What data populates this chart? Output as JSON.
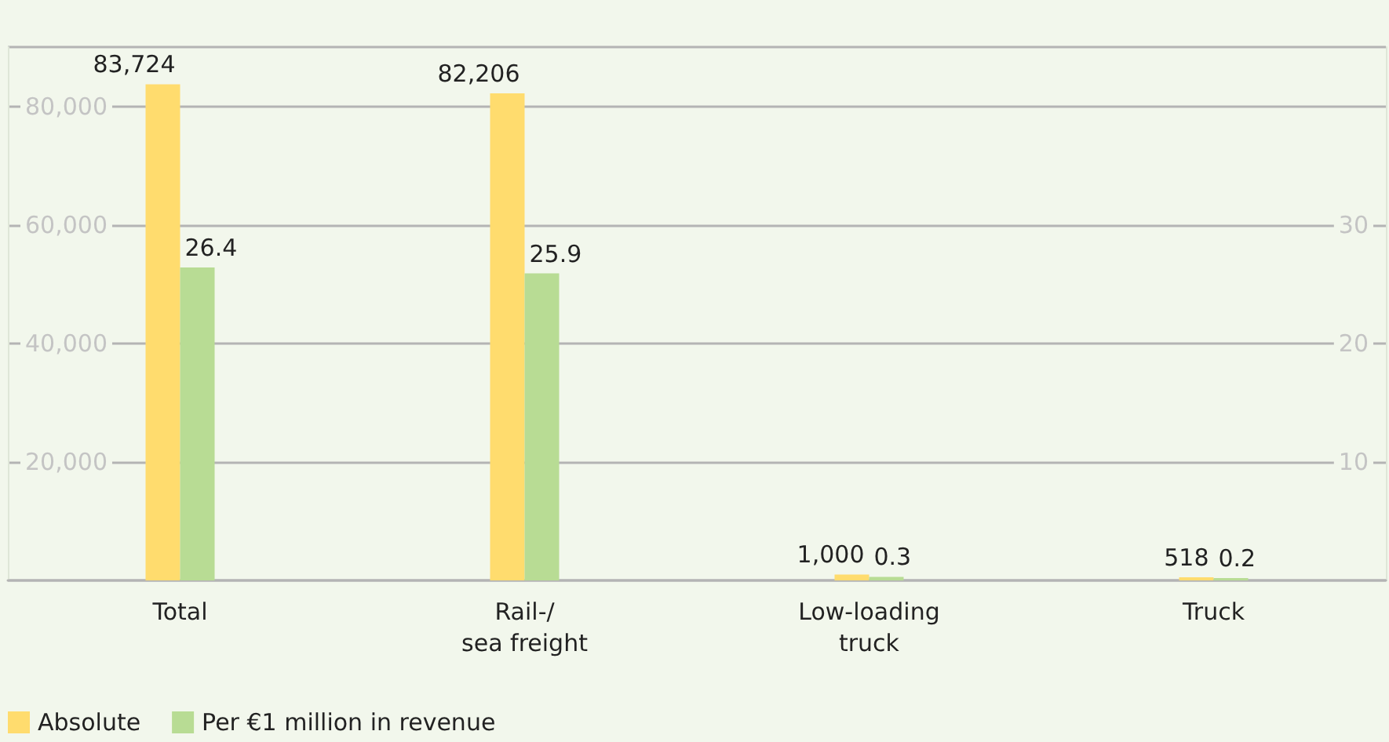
{
  "chart_data": {
    "type": "bar",
    "categories": [
      "Total",
      "Rail-/\nsea freight",
      "Low-loading\ntruck",
      "Truck"
    ],
    "series": [
      {
        "name": "Absolute",
        "color": "#ffdc6e",
        "values": [
          83724,
          82206,
          1000,
          518
        ],
        "value_labels": [
          "83,724",
          "82,206",
          "1,000",
          "518"
        ]
      },
      {
        "name": "Per €1 million in revenue",
        "color": "#b8dc94",
        "values": [
          26.4,
          25.9,
          0.3,
          0.2
        ],
        "axis": "y2",
        "value_labels": [
          "26.4",
          "25.9",
          "0.3",
          "0.2"
        ]
      }
    ],
    "ylim": [
      0,
      90000
    ],
    "yticks": [
      {
        "value": 0,
        "label": null
      },
      {
        "value": 20000,
        "label": "20,000"
      },
      {
        "value": 40000,
        "label": "40,000"
      },
      {
        "value": 60000,
        "label": "60,000"
      },
      {
        "value": 80000,
        "label": "80,000"
      },
      {
        "value": 90000,
        "label": null
      }
    ],
    "y2lim": [
      0,
      45
    ],
    "y2ticks": [
      10,
      20,
      30
    ],
    "grid": "y",
    "legend": "bottom left"
  }
}
